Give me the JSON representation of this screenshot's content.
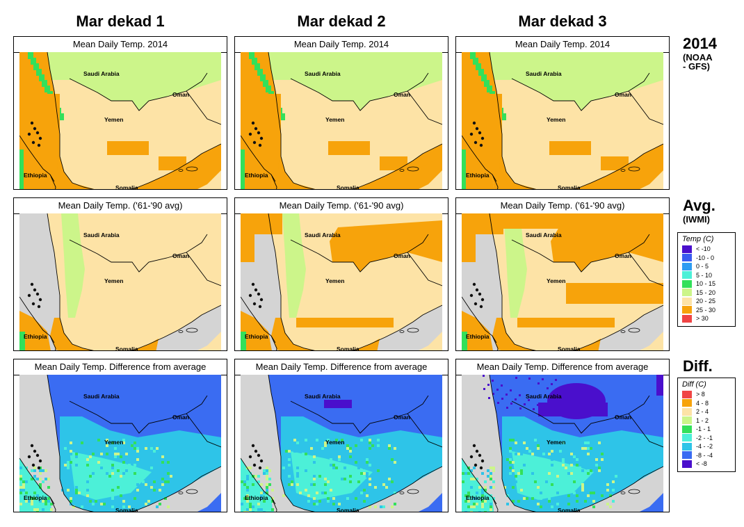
{
  "columns": [
    "Mar dekad 1",
    "Mar dekad 2",
    "Mar dekad 3"
  ],
  "rows": [
    {
      "key": "forecast",
      "panel_title": "Mean Daily Temp. 2014",
      "label": "2014",
      "sublabel": "(NOAA\n- GFS)"
    },
    {
      "key": "average",
      "panel_title": "Mean Daily Temp. ('61-'90 avg)",
      "label": "Avg.",
      "sublabel": "(IWMI)"
    },
    {
      "key": "difference",
      "panel_title": "Mean Daily Temp. Difference from average",
      "label": "Diff.",
      "sublabel": ""
    }
  ],
  "map_labels": {
    "saudi": "Saudi Arabia",
    "oman": "Oman",
    "yemen": "Yemen",
    "ethiopia": "Ethiopia",
    "somalia": "Somalia"
  },
  "temp_legend": {
    "title": "Temp (C)",
    "items": [
      {
        "label": "< -10",
        "color": "#4a0fcc"
      },
      {
        "label": "-10 -  0",
        "color": "#3a5cf0"
      },
      {
        "label": "0 -  5",
        "color": "#2e9cf2"
      },
      {
        "label": "5 - 10",
        "color": "#4cf0d8"
      },
      {
        "label": "10 - 15",
        "color": "#33e05a"
      },
      {
        "label": "15 - 20",
        "color": "#ccf58a"
      },
      {
        "label": "20 - 25",
        "color": "#fde3a6"
      },
      {
        "label": "25 - 30",
        "color": "#f7a30b"
      },
      {
        "label": "> 30",
        "color": "#f04545"
      }
    ]
  },
  "diff_legend": {
    "title": "Diff (C)",
    "items": [
      {
        "label": "> 8",
        "color": "#f04545"
      },
      {
        "label": "4 -  8",
        "color": "#f7a30b"
      },
      {
        "label": "2 -  4",
        "color": "#fde3a6"
      },
      {
        "label": "1 -  2",
        "color": "#ccf58a"
      },
      {
        "label": "-1 -  1",
        "color": "#33e05a"
      },
      {
        "label": "-2 - -1",
        "color": "#4cf0d8"
      },
      {
        "label": "-4 - -2",
        "color": "#2ec4e8"
      },
      {
        "label": "-8 - -4",
        "color": "#3a6cf2"
      },
      {
        "label": "< -8",
        "color": "#4a0fcc"
      }
    ]
  }
}
